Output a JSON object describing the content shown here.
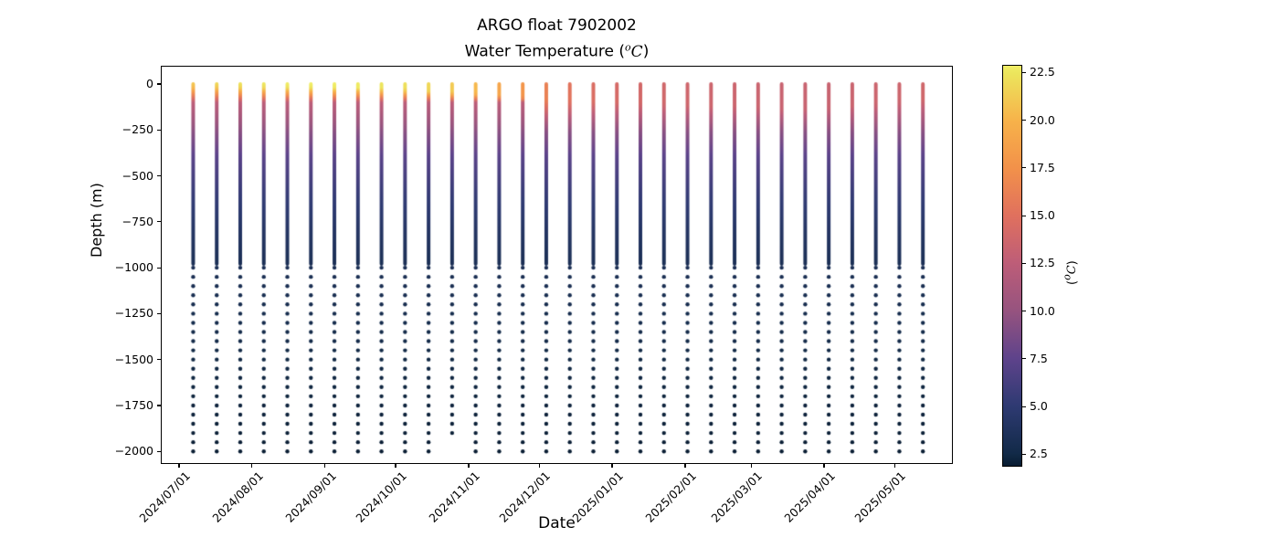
{
  "chart_data": {
    "type": "scatter",
    "title": "ARGO float 7902002",
    "subtitle_parts": {
      "prefix": "Water Temperature (",
      "sup": "o",
      "unit": "C",
      "suffix": ")"
    },
    "xlabel": "Date",
    "ylabel": "Depth (m)",
    "x_ticks": [
      "2024/07/01",
      "2024/08/01",
      "2024/09/01",
      "2024/10/01",
      "2024/11/01",
      "2024/12/01",
      "2025/01/01",
      "2025/02/01",
      "2025/03/01",
      "2025/04/01",
      "2025/05/01"
    ],
    "y_ticks": [
      0,
      -250,
      -500,
      -750,
      -1000,
      -1250,
      -1500,
      -1750,
      -2000
    ],
    "ylim": [
      -2070,
      100
    ],
    "grid": false,
    "colorbar": {
      "label_parts": {
        "prefix": "(",
        "sup": "o",
        "unit": "C",
        "suffix": ")"
      },
      "ticks": [
        22.5,
        20.0,
        17.5,
        15.0,
        12.5,
        10.0,
        7.5,
        5.0,
        2.5
      ],
      "vmin": 1.85,
      "vmax": 22.9,
      "colormap_name": "thermal",
      "colormap_stops": [
        [
          1.85,
          "#081c31"
        ],
        [
          2.5,
          "#122a48"
        ],
        [
          5.0,
          "#2e3a72"
        ],
        [
          7.5,
          "#5e438b"
        ],
        [
          10.0,
          "#96537f"
        ],
        [
          12.5,
          "#bd5d78"
        ],
        [
          15.0,
          "#e0705e"
        ],
        [
          17.5,
          "#f2914a"
        ],
        [
          20.0,
          "#f7b24a"
        ],
        [
          22.5,
          "#ece55c"
        ],
        [
          22.9,
          "#f0ee66"
        ]
      ]
    },
    "depth_sampling": {
      "line_top_m": 0,
      "line_bottom_m": -980,
      "dots_start_m": -1000,
      "dots_step_m": -50,
      "dots_end_default_m": -2000
    },
    "deep_temperature_profile": [
      [
        100,
        12.5
      ],
      [
        250,
        9.6
      ],
      [
        400,
        7.2
      ],
      [
        600,
        5.4
      ],
      [
        800,
        4.1
      ],
      [
        1000,
        3.2
      ],
      [
        1500,
        2.4
      ],
      [
        2000,
        1.9
      ]
    ],
    "profiles": [
      {
        "date": "2024/07/07",
        "surface_temp_c": 21.0,
        "mixed_layer_depth_m": 12,
        "max_depth_m": 2000
      },
      {
        "date": "2024/07/17",
        "surface_temp_c": 21.8,
        "mixed_layer_depth_m": 12,
        "max_depth_m": 2000
      },
      {
        "date": "2024/07/27",
        "surface_temp_c": 22.3,
        "mixed_layer_depth_m": 14,
        "max_depth_m": 2000
      },
      {
        "date": "2024/08/06",
        "surface_temp_c": 22.6,
        "mixed_layer_depth_m": 14,
        "max_depth_m": 2000
      },
      {
        "date": "2024/08/16",
        "surface_temp_c": 22.8,
        "mixed_layer_depth_m": 15,
        "max_depth_m": 2000
      },
      {
        "date": "2024/08/26",
        "surface_temp_c": 22.9,
        "mixed_layer_depth_m": 16,
        "max_depth_m": 2000
      },
      {
        "date": "2024/09/05",
        "surface_temp_c": 22.9,
        "mixed_layer_depth_m": 18,
        "max_depth_m": 2000
      },
      {
        "date": "2024/09/15",
        "surface_temp_c": 22.7,
        "mixed_layer_depth_m": 20,
        "max_depth_m": 2000
      },
      {
        "date": "2024/09/25",
        "surface_temp_c": 22.5,
        "mixed_layer_depth_m": 24,
        "max_depth_m": 2000
      },
      {
        "date": "2024/10/05",
        "surface_temp_c": 22.2,
        "mixed_layer_depth_m": 30,
        "max_depth_m": 2000
      },
      {
        "date": "2024/10/15",
        "surface_temp_c": 21.8,
        "mixed_layer_depth_m": 38,
        "max_depth_m": 2000
      },
      {
        "date": "2024/10/25",
        "surface_temp_c": 21.2,
        "mixed_layer_depth_m": 48,
        "max_depth_m": 1900
      },
      {
        "date": "2024/11/04",
        "surface_temp_c": 20.3,
        "mixed_layer_depth_m": 55,
        "max_depth_m": 2000
      },
      {
        "date": "2024/11/14",
        "surface_temp_c": 19.0,
        "mixed_layer_depth_m": 65,
        "max_depth_m": 2000
      },
      {
        "date": "2024/11/24",
        "surface_temp_c": 17.8,
        "mixed_layer_depth_m": 75,
        "max_depth_m": 2000
      },
      {
        "date": "2024/12/04",
        "surface_temp_c": 16.3,
        "mixed_layer_depth_m": 85,
        "max_depth_m": 2000
      },
      {
        "date": "2024/12/14",
        "surface_temp_c": 15.2,
        "mixed_layer_depth_m": 90,
        "max_depth_m": 2000
      },
      {
        "date": "2024/12/24",
        "surface_temp_c": 14.6,
        "mixed_layer_depth_m": 95,
        "max_depth_m": 2000
      },
      {
        "date": "2025/01/03",
        "surface_temp_c": 14.2,
        "mixed_layer_depth_m": 100,
        "max_depth_m": 2000
      },
      {
        "date": "2025/01/13",
        "surface_temp_c": 14.0,
        "mixed_layer_depth_m": 105,
        "max_depth_m": 2000
      },
      {
        "date": "2025/01/23",
        "surface_temp_c": 13.8,
        "mixed_layer_depth_m": 110,
        "max_depth_m": 2000
      },
      {
        "date": "2025/02/02",
        "surface_temp_c": 13.7,
        "mixed_layer_depth_m": 115,
        "max_depth_m": 2000
      },
      {
        "date": "2025/02/12",
        "surface_temp_c": 13.6,
        "mixed_layer_depth_m": 120,
        "max_depth_m": 2000
      },
      {
        "date": "2025/02/22",
        "surface_temp_c": 13.5,
        "mixed_layer_depth_m": 125,
        "max_depth_m": 2000
      },
      {
        "date": "2025/03/04",
        "surface_temp_c": 13.4,
        "mixed_layer_depth_m": 130,
        "max_depth_m": 2000
      },
      {
        "date": "2025/03/14",
        "surface_temp_c": 13.3,
        "mixed_layer_depth_m": 135,
        "max_depth_m": 2000
      },
      {
        "date": "2025/03/24",
        "surface_temp_c": 13.3,
        "mixed_layer_depth_m": 135,
        "max_depth_m": 2000
      },
      {
        "date": "2025/04/03",
        "surface_temp_c": 13.3,
        "mixed_layer_depth_m": 130,
        "max_depth_m": 2000
      },
      {
        "date": "2025/04/13",
        "surface_temp_c": 13.4,
        "mixed_layer_depth_m": 120,
        "max_depth_m": 2000
      },
      {
        "date": "2025/04/23",
        "surface_temp_c": 13.5,
        "mixed_layer_depth_m": 110,
        "max_depth_m": 2000
      },
      {
        "date": "2025/05/03",
        "surface_temp_c": 13.6,
        "mixed_layer_depth_m": 95,
        "max_depth_m": 2000
      },
      {
        "date": "2025/05/13",
        "surface_temp_c": 13.8,
        "mixed_layer_depth_m": 85,
        "max_depth_m": 2000
      }
    ]
  }
}
